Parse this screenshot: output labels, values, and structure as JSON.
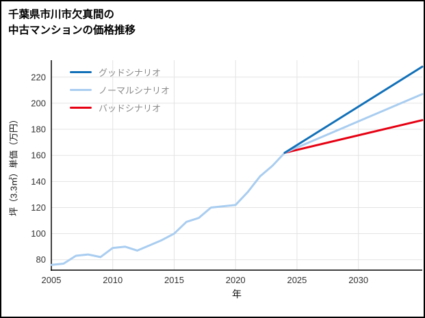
{
  "page": {
    "background": "#ffffff",
    "border_color": "#000000"
  },
  "title": {
    "line1": "千葉県市川市欠真間の",
    "line2": "中古マンションの価格推移"
  },
  "axes": {
    "x_label": "年",
    "y_label": "坪（3.3㎡）単価（万円）"
  },
  "legend": [
    {
      "label": "グッドシナリオ",
      "color": "#1170b8"
    },
    {
      "label": "ノーマルシナリオ",
      "color": "#a9cdf0"
    },
    {
      "label": "バッドシナリオ",
      "color": "#e60012"
    }
  ],
  "chart_data": {
    "type": "line",
    "title": "千葉県市川市欠真間の中古マンションの価格推移",
    "xlabel": "年",
    "ylabel": "坪（3.3㎡）単価（万円）",
    "xlim": [
      2005,
      2035.2
    ],
    "ylim": [
      72,
      233
    ],
    "x_ticks": [
      2005,
      2010,
      2015,
      2020,
      2025,
      2030
    ],
    "y_ticks": [
      80,
      100,
      120,
      140,
      160,
      180,
      200,
      220
    ],
    "grid": true,
    "grid_color": "#e3e3e3",
    "axis_color": "#000000",
    "tick_label_color": "#333333",
    "legend_position": "upper-left-inside",
    "series": [
      {
        "name": "historical",
        "legend": false,
        "color": "#a9cdf0",
        "x": [
          2005,
          2006,
          2007,
          2008,
          2009,
          2010,
          2011,
          2012,
          2013,
          2014,
          2015,
          2016,
          2017,
          2018,
          2019,
          2020,
          2021,
          2022,
          2023,
          2024
        ],
        "values": [
          76,
          77,
          83,
          84,
          82,
          89,
          90,
          87,
          91,
          95,
          100,
          109,
          112,
          120,
          121,
          122,
          132,
          144,
          152,
          162
        ]
      },
      {
        "name": "バッドシナリオ",
        "legend": true,
        "color": "#e60012",
        "x": [
          2024,
          2035.2
        ],
        "values": [
          162,
          187
        ]
      },
      {
        "name": "ノーマルシナリオ",
        "legend": true,
        "color": "#a9cdf0",
        "x": [
          2024,
          2035.2
        ],
        "values": [
          162,
          207
        ]
      },
      {
        "name": "グッドシナリオ",
        "legend": true,
        "color": "#1170b8",
        "x": [
          2024,
          2035.2
        ],
        "values": [
          162,
          228
        ]
      }
    ]
  }
}
